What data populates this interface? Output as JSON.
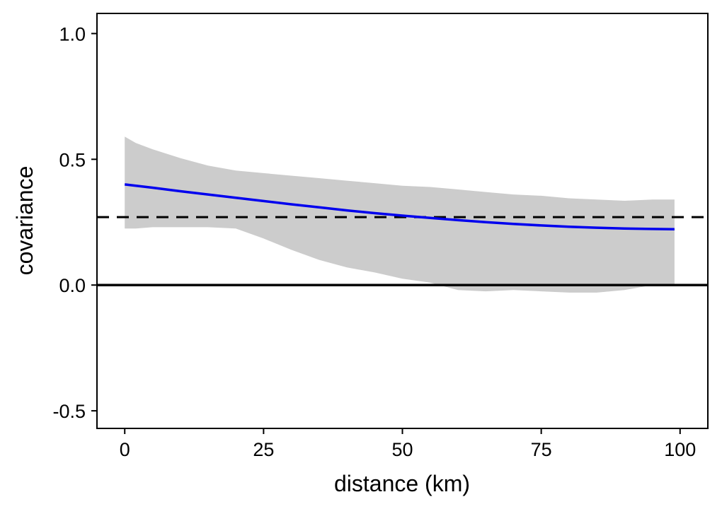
{
  "chart_data": {
    "type": "line",
    "title": "",
    "xlabel": "distance (km)",
    "ylabel": "covariance",
    "xlim": [
      -5,
      105
    ],
    "ylim": [
      -0.57,
      1.08
    ],
    "x_ticks": [
      0,
      25,
      50,
      75,
      100
    ],
    "x_tick_labels": [
      "0",
      "25",
      "50",
      "75",
      "100"
    ],
    "y_ticks": [
      -0.5,
      0.0,
      0.5,
      1.0
    ],
    "y_tick_labels": [
      "-0.5",
      "0.0",
      "0.5",
      "1.0"
    ],
    "grid": false,
    "legend": "none",
    "colors": {
      "line": "#0000ee",
      "band": "#cccccc",
      "reference": "#000000"
    },
    "series": [
      {
        "type": "line",
        "x": [
          0,
          5,
          10,
          15,
          20,
          25,
          30,
          35,
          40,
          45,
          50,
          55,
          60,
          65,
          70,
          75,
          80,
          85,
          90,
          95,
          99
        ],
        "y": [
          0.4,
          0.387,
          0.373,
          0.36,
          0.347,
          0.334,
          0.321,
          0.309,
          0.297,
          0.286,
          0.276,
          0.267,
          0.258,
          0.25,
          0.243,
          0.237,
          0.232,
          0.228,
          0.225,
          0.223,
          0.222
        ]
      },
      {
        "type": "band",
        "x": [
          0,
          2,
          5,
          10,
          15,
          20,
          25,
          30,
          35,
          40,
          45,
          50,
          55,
          60,
          65,
          70,
          75,
          80,
          85,
          90,
          95,
          99
        ],
        "upper": [
          0.59,
          0.565,
          0.54,
          0.505,
          0.475,
          0.455,
          0.445,
          0.435,
          0.425,
          0.415,
          0.405,
          0.395,
          0.39,
          0.38,
          0.37,
          0.36,
          0.355,
          0.345,
          0.34,
          0.335,
          0.34,
          0.34
        ],
        "lower": [
          0.225,
          0.225,
          0.23,
          0.23,
          0.23,
          0.225,
          0.185,
          0.14,
          0.1,
          0.07,
          0.05,
          0.025,
          0.01,
          -0.02,
          -0.025,
          -0.02,
          -0.025,
          -0.03,
          -0.03,
          -0.02,
          0.0,
          0.0
        ]
      }
    ],
    "hlines": [
      {
        "y": 0.0,
        "style": "solid"
      },
      {
        "y": 0.27,
        "style": "dashed"
      }
    ]
  }
}
